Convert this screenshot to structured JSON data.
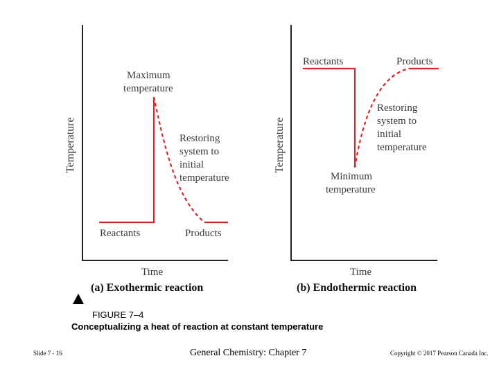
{
  "panel_a": {
    "y_label": "Temperature",
    "x_label": "Time",
    "caption": "(a) Exothermic reaction",
    "peak_label_line1": "Maximum",
    "peak_label_line2": "temperature",
    "restore_line1": "Restoring",
    "restore_line2": "system to",
    "restore_line3": "initial",
    "restore_line4": "temperature",
    "reactants": "Reactants",
    "products": "Products"
  },
  "panel_b": {
    "y_label": "Temperature",
    "x_label": "Time",
    "caption": "(b) Endothermic reaction",
    "trough_label_line1": "Minimum",
    "trough_label_line2": "temperature",
    "restore_line1": "Restoring",
    "restore_line2": "system to",
    "restore_line3": "initial",
    "restore_line4": "temperature",
    "reactants": "Reactants",
    "products": "Products"
  },
  "figure": {
    "marker_icon": "triangle-up",
    "number": "FIGURE 7–4",
    "title": "Conceptualizing a heat of reaction at constant temperature"
  },
  "footer": {
    "slide": "Slide 7 - 16",
    "course": "General Chemistry: Chapter 7",
    "copyright": "Copyright © 2017 Pearson Canada Inc."
  },
  "colors": {
    "curve": "#d9262b",
    "axis": "#222222",
    "text": "#3a3a3a"
  }
}
